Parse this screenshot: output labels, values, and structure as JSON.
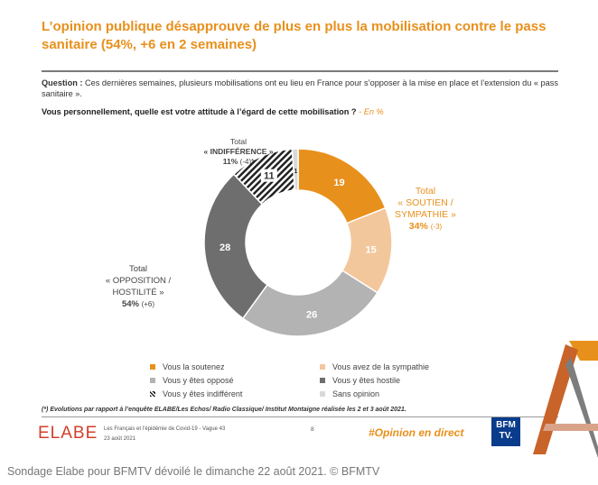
{
  "header": {
    "title": "L’opinion publique désapprouve de plus en plus la mobilisation contre le pass sanitaire (54%, +6 en 2 semaines)",
    "question_label": "Question :",
    "question_text": " Ces dernières semaines, plusieurs mobilisations ont eu lieu en France pour s’opposer à la mise en place et l’extension du « pass sanitaire ».",
    "ask": "Vous personnellement, quelle est votre attitude à l’égard de cette mobilisation ?",
    "unit": " - En %"
  },
  "chart_data": {
    "type": "pie",
    "donut": true,
    "slices": [
      {
        "name": "Vous la soutenez",
        "value": 19,
        "color": "#e8901c"
      },
      {
        "name": "Vous avez de la sympathie",
        "value": 15,
        "color": "#f3c79c"
      },
      {
        "name": "Vous y êtes opposé",
        "value": 26,
        "color": "#b3b3b3"
      },
      {
        "name": "Vous y êtes hostile",
        "value": 28,
        "color": "#6e6e6e"
      },
      {
        "name": "Vous y êtes indifférent",
        "value": 11,
        "color": "#222222",
        "hatched": true
      },
      {
        "name": "Sans opinion",
        "value": 1,
        "color": "#d9d9d9"
      }
    ],
    "groups": {
      "soutien": {
        "line1": "Total",
        "line2": "« SOUTIEN /",
        "line3": "SYMPATHIE »",
        "total": "34%",
        "change": "(-3)"
      },
      "opposition": {
        "line1": "Total",
        "line2": "« OPPOSITION /",
        "line3": "HOSTILITÉ »",
        "total": "54%",
        "change": "(+6)"
      },
      "indifference": {
        "line1": "Total",
        "line2": "« INDIFFÉRENCE »",
        "total": "11%",
        "change": "(-4)*"
      }
    }
  },
  "legend": [
    {
      "label": "Vous la soutenez",
      "color": "#e8901c",
      "icon": "square"
    },
    {
      "label": "Vous avez de la sympathie",
      "color": "#f3c79c",
      "icon": "square"
    },
    {
      "label": "Vous y êtes opposé",
      "color": "#b3b3b3",
      "icon": "square"
    },
    {
      "label": "Vous y êtes hostile",
      "color": "#6e6e6e",
      "icon": "square"
    },
    {
      "label": "Vous y êtes indifférent",
      "color": "#222222",
      "icon": "hatch"
    },
    {
      "label": "Sans opinion",
      "color": "#d9d9d9",
      "icon": "square"
    }
  ],
  "footer": {
    "note": "(*) Evolutions par rapport à l’enquête ELABE/Les Echos/ Radio Classique/ Institut Montaigne réalisée les 2 et 3 août 2021.",
    "logo": "ELABE",
    "source_line1": "Les Français et l’épidémie de Covid-19 - Vague 43",
    "source_line2": "23 août 2021",
    "page": "8",
    "hashtag": "#Opinion en direct",
    "bfm_line1": "BFM",
    "bfm_line2": "TV."
  },
  "caption": "Sondage Elabe pour BFMTV dévoilé le dimanche 22 août 2021. © BFMTV"
}
